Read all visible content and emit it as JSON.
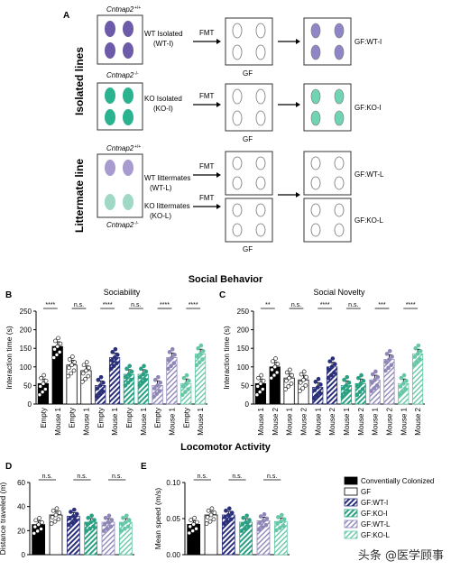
{
  "colors": {
    "wt": "#6d5aa8",
    "ko": "#2bb38f",
    "black": "#000000",
    "gfwt": "#2b2f7a",
    "gfko": "#2aa083",
    "gfwtl": "#8f86b8",
    "gfkol": "#66c7a8"
  },
  "panelA": {
    "label": "A",
    "isolated_lines": "Isolated lines",
    "littermate_line": "Littermate line",
    "wt_genotype": "Cntnap2",
    "wt_sup": "+/+",
    "ko_genotype": "Cntnap2",
    "ko_sup": "-/-",
    "wt_isolated": "WT Isolated",
    "wt_isolated_abbr": "(WT-I)",
    "ko_isolated": "KO Isolated",
    "ko_isolated_abbr": "(KO-I)",
    "wt_littermates": "WT littermates",
    "wt_littermates_abbr": "(WT-L)",
    "ko_littermates": "KO littermates",
    "ko_littermates_abbr": "(KO-L)",
    "fmt": "FMT",
    "gf": "GF",
    "gf_wti": "GF:WT-I",
    "gf_koi": "GF:KO-I",
    "gf_wtl": "GF:WT-L",
    "gf_kol": "GF:KO-L"
  },
  "sections": {
    "social": "Social Behavior",
    "locomotor": "Locomotor Activity"
  },
  "legend": {
    "items": [
      {
        "label": "Conventially Colonized",
        "pattern": "black"
      },
      {
        "label": "GF",
        "pattern": "white"
      },
      {
        "label": "GF:WT-I",
        "pattern": "gfwt"
      },
      {
        "label": "GF:KO-I",
        "pattern": "gfko"
      },
      {
        "label": "GF:WT-L",
        "pattern": "gfwtl"
      },
      {
        "label": "GF:KO-L",
        "pattern": "gfkol"
      }
    ]
  },
  "chart_data": [
    {
      "panel": "B",
      "type": "bar",
      "title": "Sociability",
      "ylabel": "Interaction time (s)",
      "ylim": [
        0,
        250
      ],
      "yticks": [
        0,
        50,
        100,
        150,
        200,
        250
      ],
      "categories": [
        "Empty",
        "Mouse 1",
        "Empty",
        "Mouse 1",
        "Empty",
        "Mouse 1",
        "Empty",
        "Mouse 1",
        "Empty",
        "Mouse 1",
        "Empty",
        "Mouse 1"
      ],
      "groups": [
        "black",
        "white",
        "gfwt",
        "gfko",
        "gfwtl",
        "gfkol"
      ],
      "values": [
        55,
        155,
        105,
        90,
        50,
        125,
        80,
        80,
        50,
        125,
        55,
        135
      ],
      "significance": [
        "****",
        "n.s.",
        "****",
        "n.s.",
        "****",
        "****"
      ]
    },
    {
      "panel": "C",
      "type": "bar",
      "title": "Social Novelty",
      "ylabel": "Interaction time (s)",
      "ylim": [
        0,
        250
      ],
      "yticks": [
        0,
        50,
        100,
        150,
        200,
        250
      ],
      "categories": [
        "Mouse 1",
        "Mouse 2",
        "Mouse 1",
        "Mouse 2",
        "Mouse 1",
        "Mouse 2",
        "Mouse 1",
        "Mouse 2",
        "Mouse 1",
        "Mouse 2",
        "Mouse 1",
        "Mouse 2"
      ],
      "groups": [
        "black",
        "white",
        "gfwt",
        "gfko",
        "gfwtl",
        "gfkol"
      ],
      "values": [
        55,
        100,
        70,
        65,
        45,
        100,
        50,
        55,
        65,
        120,
        55,
        135
      ],
      "significance": [
        "**",
        "n.s.",
        "****",
        "n.s.",
        "***",
        "****"
      ]
    },
    {
      "panel": "D",
      "type": "bar",
      "title": "",
      "ylabel": "Distance traveled (m)",
      "ylim": [
        0,
        60
      ],
      "yticks": [
        0,
        20,
        40,
        60
      ],
      "groups": [
        "black",
        "white",
        "gfwt",
        "gfko",
        "gfwtl",
        "gfkol"
      ],
      "values": [
        25,
        33,
        32,
        27,
        27,
        27
      ],
      "significance": [
        "n.s.",
        "n.s.",
        "n.s."
      ]
    },
    {
      "panel": "E",
      "type": "bar",
      "title": "",
      "ylabel": "Mean speed (m/s)",
      "ylim": [
        0,
        0.1
      ],
      "yticks": [
        "0.00",
        "0.05",
        "0.10"
      ],
      "groups": [
        "black",
        "white",
        "gfwt",
        "gfko",
        "gfwtl",
        "gfkol"
      ],
      "values": [
        0.042,
        0.055,
        0.055,
        0.045,
        0.047,
        0.046
      ],
      "significance": [
        "n.s.",
        "n.s.",
        "n.s."
      ]
    }
  ],
  "watermark": "头条 @医学顾事"
}
